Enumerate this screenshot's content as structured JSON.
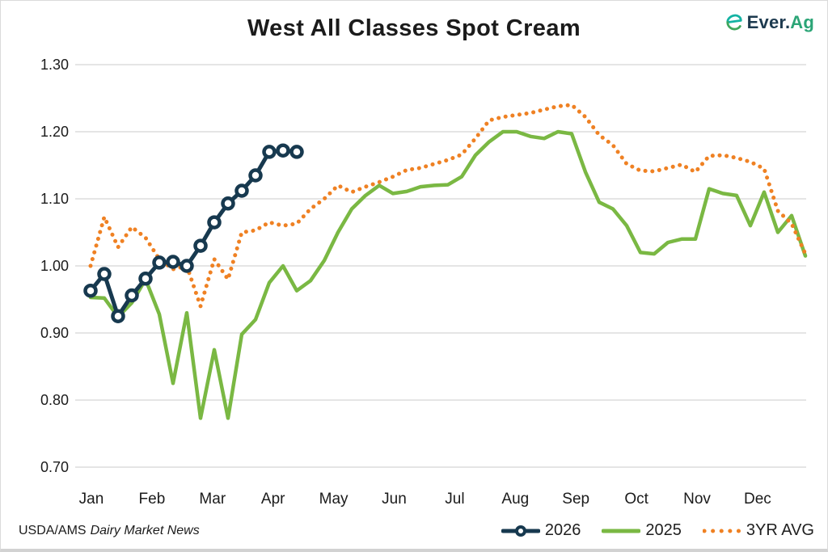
{
  "logo": {
    "brand_primary": "Ever.",
    "brand_accent": "Ag",
    "icon_teal": "#14b3a3",
    "icon_green": "#3fa65c",
    "navy": "#1d3a4f",
    "accent_green": "#2ca577"
  },
  "footer": {
    "source_prefix": "USDA/AMS",
    "source_name": "Dairy Market News"
  },
  "chart_data": {
    "type": "line",
    "title": "West All Classes Spot Cream",
    "sampling": "weekly",
    "x_axis": {
      "tick_labels": [
        "Jan",
        "Feb",
        "Mar",
        "Apr",
        "May",
        "Jun",
        "Jul",
        "Aug",
        "Sep",
        "Oct",
        "Nov",
        "Dec"
      ],
      "grid": false
    },
    "y_axis": {
      "tick_labels": [
        "1.30",
        "1.20",
        "1.10",
        "1.00",
        "0.90",
        "0.80",
        "0.70"
      ],
      "min": 0.7,
      "max": 1.3,
      "grid": true,
      "grid_color": "#cbcbcb"
    },
    "legend": {
      "position": "bottom-right",
      "entries": [
        "2026",
        "2025",
        "3YR AVG"
      ]
    },
    "series": [
      {
        "name": "2026",
        "color": "#17394f",
        "style": "line-with-circle-markers",
        "values": [
          0.963,
          0.988,
          0.925,
          0.956,
          0.981,
          1.005,
          1.006,
          1.0,
          1.03,
          1.065,
          1.093,
          1.112,
          1.135,
          1.17,
          1.172,
          1.17
        ]
      },
      {
        "name": "2025",
        "color": "#7ab843",
        "style": "solid-line",
        "values": [
          0.953,
          0.952,
          0.924,
          0.945,
          0.98,
          0.928,
          0.825,
          0.93,
          0.773,
          0.875,
          0.773,
          0.898,
          0.92,
          0.975,
          1.0,
          0.963,
          0.978,
          1.008,
          1.05,
          1.085,
          1.105,
          1.12,
          1.108,
          1.111,
          1.118,
          1.12,
          1.121,
          1.133,
          1.165,
          1.185,
          1.2,
          1.2,
          1.193,
          1.19,
          1.2,
          1.197,
          1.14,
          1.095,
          1.085,
          1.06,
          1.02,
          1.018,
          1.035,
          1.04,
          1.04,
          1.115,
          1.108,
          1.105,
          1.06,
          1.11,
          1.05,
          1.075,
          1.015
        ]
      },
      {
        "name": "3YR AVG",
        "color": "#ef8123",
        "style": "dotted-line",
        "values": [
          1.0,
          1.073,
          1.028,
          1.058,
          1.042,
          1.01,
          0.995,
          1.0,
          0.94,
          1.01,
          0.98,
          1.05,
          1.053,
          1.065,
          1.06,
          1.063,
          1.085,
          1.1,
          1.12,
          1.11,
          1.118,
          1.125,
          1.133,
          1.143,
          1.146,
          1.152,
          1.158,
          1.166,
          1.19,
          1.217,
          1.222,
          1.225,
          1.228,
          1.233,
          1.238,
          1.24,
          1.222,
          1.195,
          1.18,
          1.152,
          1.142,
          1.141,
          1.146,
          1.151,
          1.14,
          1.164,
          1.165,
          1.161,
          1.155,
          1.145,
          1.082,
          1.063,
          1.018
        ]
      }
    ]
  }
}
